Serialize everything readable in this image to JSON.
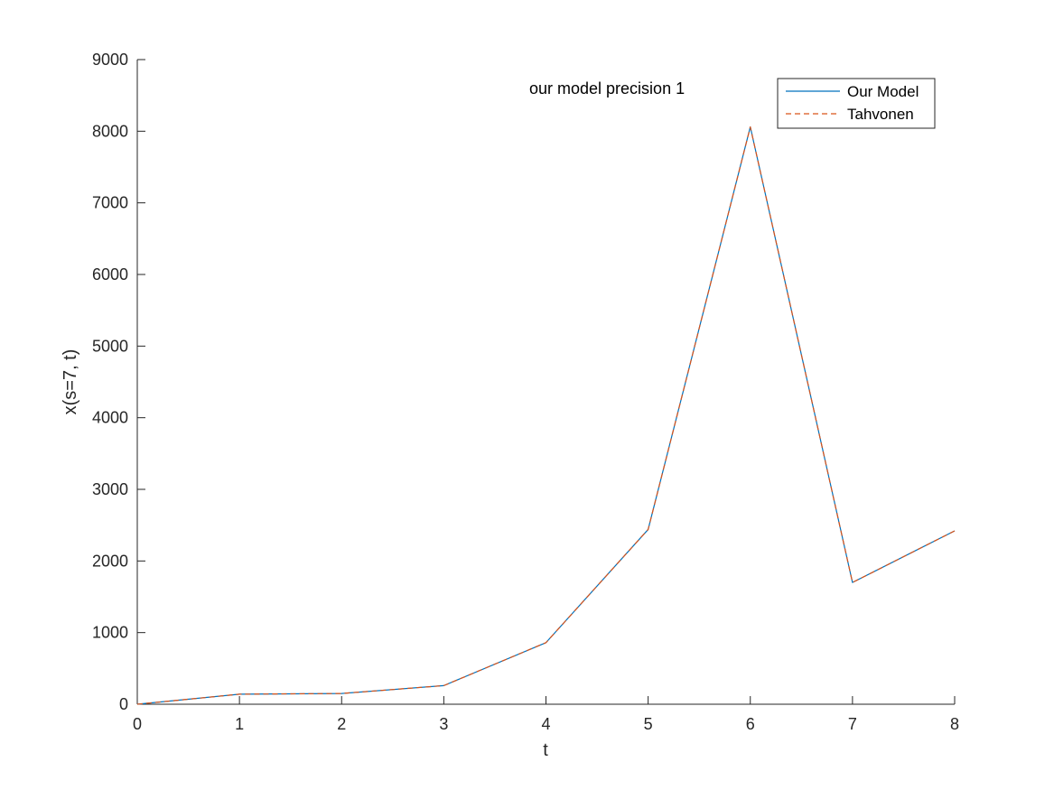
{
  "chart_data": {
    "type": "line",
    "title": "",
    "annotation": "our model precision 1",
    "xlabel": "t",
    "ylabel": "x(s=7, t)",
    "xlim": [
      0,
      8
    ],
    "ylim": [
      0,
      9000
    ],
    "xticks": [
      0,
      1,
      2,
      3,
      4,
      5,
      6,
      7,
      8
    ],
    "yticks": [
      0,
      1000,
      2000,
      3000,
      4000,
      5000,
      6000,
      7000,
      8000,
      9000
    ],
    "grid": false,
    "legend_position": "top-right",
    "x": [
      0,
      1,
      2,
      3,
      4,
      5,
      6,
      7,
      8
    ],
    "series": [
      {
        "name": "Our Model",
        "style": "solid",
        "color": "#0072BD",
        "values": [
          0,
          140,
          150,
          260,
          860,
          2440,
          8060,
          1700,
          2420
        ]
      },
      {
        "name": "Tahvonen",
        "style": "dashed",
        "color": "#D95319",
        "values": [
          0,
          140,
          150,
          260,
          860,
          2440,
          8060,
          1700,
          2420
        ]
      }
    ]
  }
}
